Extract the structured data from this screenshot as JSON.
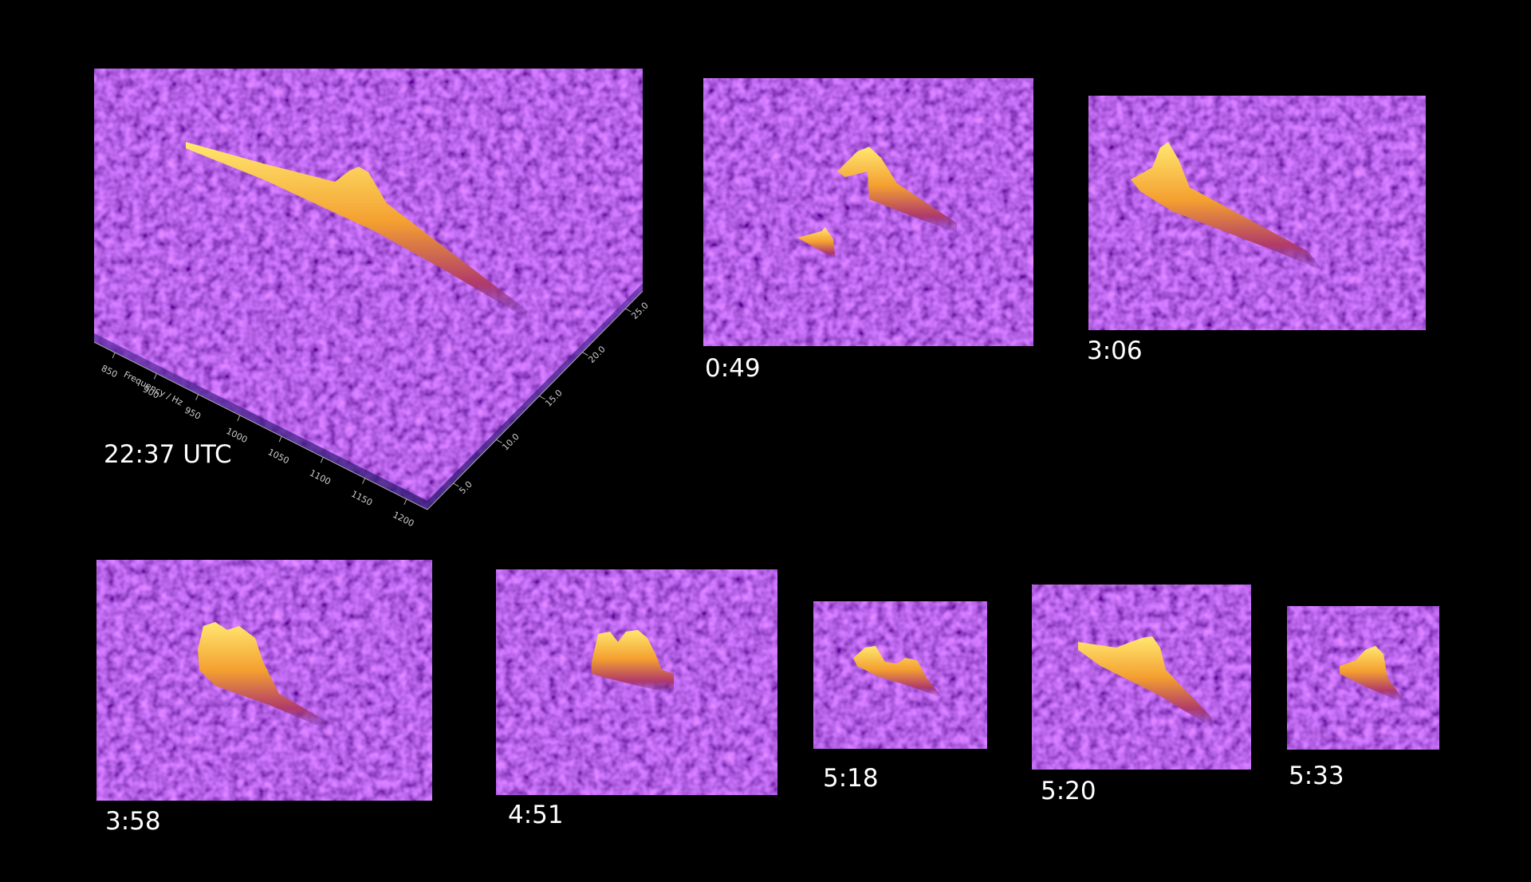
{
  "panels": [
    {
      "label": "22:37 UTC",
      "frequency_axis": {
        "title": "Frequency / Hz",
        "ticks": [
          "850",
          "900",
          "950",
          "1000",
          "1050",
          "1100",
          "1150",
          "1200"
        ]
      },
      "time_axis": {
        "ticks": [
          "5.0",
          "10.0",
          "15.0",
          "20.0",
          "25.0"
        ]
      }
    },
    {
      "label": "0:49"
    },
    {
      "label": "3:06"
    },
    {
      "label": "3:58"
    },
    {
      "label": "4:51"
    },
    {
      "label": "5:18"
    },
    {
      "label": "5:20"
    },
    {
      "label": "5:33"
    }
  ]
}
